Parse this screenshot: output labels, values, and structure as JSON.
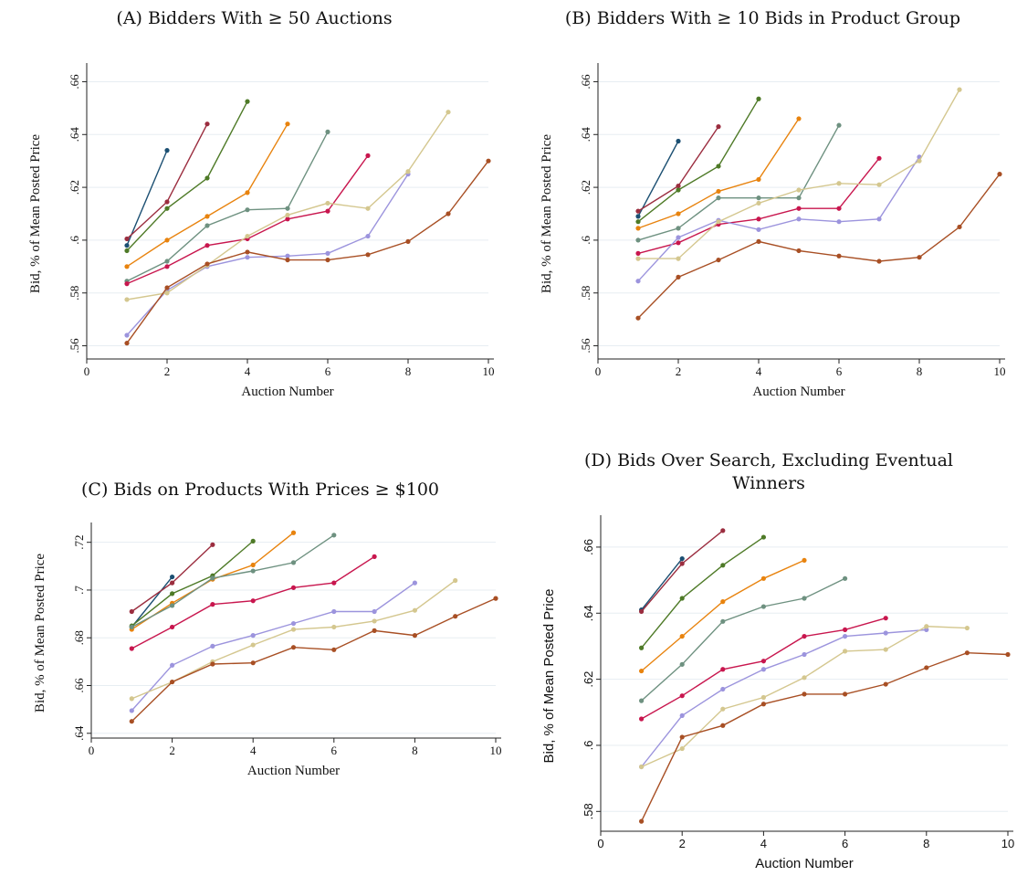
{
  "colors": {
    "navy": "#1b4f72",
    "maroon": "#9b2d3f",
    "green": "#4e7a27",
    "orange": "#e8830e",
    "teal": "#6e9180",
    "crimson": "#c8164e",
    "lavender": "#9c94dd",
    "tan": "#d4c78f",
    "brown": "#a84f24",
    "gridline": "#e7edf2",
    "axis": "#222222"
  },
  "chart_data": [
    {
      "type": "line",
      "title": "(A) Bidders With ≥ 50 Auctions",
      "xlabel": "Auction Number",
      "ylabel": "Bid, % of Mean Posted Price",
      "xlim": [
        0,
        10
      ],
      "ylim": [
        0.555,
        0.665
      ],
      "xticks": [
        "0",
        "2",
        "4",
        "6",
        "8",
        "10"
      ],
      "yticks": [
        ".56",
        ".58",
        ".6",
        ".62",
        ".64",
        ".66"
      ],
      "ytick_values": [
        0.56,
        0.58,
        0.6,
        0.62,
        0.64,
        0.66
      ],
      "grid": true,
      "legend": "none",
      "series": [
        {
          "color": "navy",
          "x": [
            1,
            2
          ],
          "y": [
            0.598,
            0.634
          ]
        },
        {
          "color": "maroon",
          "x": [
            1,
            2,
            3
          ],
          "y": [
            0.6005,
            0.6145,
            0.644
          ]
        },
        {
          "color": "green",
          "x": [
            1,
            2,
            3,
            4
          ],
          "y": [
            0.596,
            0.612,
            0.6235,
            0.6525
          ]
        },
        {
          "color": "orange",
          "x": [
            1,
            2,
            3,
            4,
            5
          ],
          "y": [
            0.59,
            0.6,
            0.609,
            0.618,
            0.644
          ]
        },
        {
          "color": "teal",
          "x": [
            1,
            2,
            3,
            4,
            5,
            6
          ],
          "y": [
            0.5845,
            0.592,
            0.6055,
            0.6115,
            0.612,
            0.641
          ]
        },
        {
          "color": "crimson",
          "x": [
            1,
            2,
            3,
            4,
            5,
            6,
            7
          ],
          "y": [
            0.5835,
            0.59,
            0.598,
            0.6005,
            0.608,
            0.611,
            0.632
          ]
        },
        {
          "color": "lavender",
          "x": [
            1,
            2,
            3,
            4,
            5,
            6,
            7,
            8
          ],
          "y": [
            0.564,
            0.581,
            0.59,
            0.5935,
            0.594,
            0.595,
            0.6015,
            0.625
          ]
        },
        {
          "color": "tan",
          "x": [
            1,
            2,
            3,
            4,
            5,
            6,
            7,
            8,
            9
          ],
          "y": [
            0.5775,
            0.58,
            0.5905,
            0.6015,
            0.6095,
            0.614,
            0.612,
            0.626,
            0.6485
          ]
        },
        {
          "color": "brown",
          "x": [
            1,
            2,
            3,
            4,
            5,
            6,
            7,
            8,
            9,
            10
          ],
          "y": [
            0.561,
            0.582,
            0.591,
            0.5955,
            0.5925,
            0.5925,
            0.5945,
            0.5995,
            0.61,
            0.63
          ]
        }
      ]
    },
    {
      "type": "line",
      "title": "(B) Bidders With ≥ 10 Bids in Product Group",
      "xlabel": "Auction Number",
      "ylabel": "Bid, % of Mean Posted Price",
      "xlim": [
        0,
        10
      ],
      "ylim": [
        0.555,
        0.665
      ],
      "xticks": [
        "0",
        "2",
        "4",
        "6",
        "8",
        "10"
      ],
      "yticks": [
        ".56",
        ".58",
        ".6",
        ".62",
        ".64",
        ".66"
      ],
      "ytick_values": [
        0.56,
        0.58,
        0.6,
        0.62,
        0.64,
        0.66
      ],
      "grid": true,
      "legend": "none",
      "series": [
        {
          "color": "navy",
          "x": [
            1,
            2
          ],
          "y": [
            0.609,
            0.6375
          ]
        },
        {
          "color": "maroon",
          "x": [
            1,
            2,
            3
          ],
          "y": [
            0.611,
            0.6205,
            0.643
          ]
        },
        {
          "color": "green",
          "x": [
            1,
            2,
            3,
            4
          ],
          "y": [
            0.607,
            0.619,
            0.628,
            0.6535
          ]
        },
        {
          "color": "orange",
          "x": [
            1,
            2,
            3,
            4,
            5
          ],
          "y": [
            0.6045,
            0.61,
            0.6185,
            0.623,
            0.646
          ]
        },
        {
          "color": "teal",
          "x": [
            1,
            2,
            3,
            4,
            5,
            6
          ],
          "y": [
            0.6,
            0.6045,
            0.616,
            0.616,
            0.616,
            0.6435
          ]
        },
        {
          "color": "crimson",
          "x": [
            1,
            2,
            3,
            4,
            5,
            6,
            7
          ],
          "y": [
            0.595,
            0.599,
            0.606,
            0.608,
            0.612,
            0.612,
            0.631
          ]
        },
        {
          "color": "lavender",
          "x": [
            1,
            2,
            3,
            4,
            5,
            6,
            7,
            8
          ],
          "y": [
            0.5845,
            0.601,
            0.6075,
            0.604,
            0.608,
            0.607,
            0.608,
            0.6315
          ]
        },
        {
          "color": "tan",
          "x": [
            1,
            2,
            3,
            4,
            5,
            6,
            7,
            8,
            9
          ],
          "y": [
            0.593,
            0.593,
            0.607,
            0.614,
            0.619,
            0.6215,
            0.621,
            0.63,
            0.657
          ]
        },
        {
          "color": "brown",
          "x": [
            1,
            2,
            3,
            4,
            5,
            6,
            7,
            8,
            9,
            10
          ],
          "y": [
            0.5705,
            0.586,
            0.5925,
            0.5995,
            0.596,
            0.594,
            0.592,
            0.5935,
            0.605,
            0.625
          ]
        }
      ]
    },
    {
      "type": "line",
      "title": "(C) Bids on Products With Prices ≥ $100",
      "xlabel": "Auction Number",
      "ylabel": "Bid, % of Mean Posted Price",
      "xlim": [
        0,
        10
      ],
      "ylim": [
        0.638,
        0.726
      ],
      "xticks": [
        "0",
        "2",
        "4",
        "6",
        "8",
        "10"
      ],
      "yticks": [
        ".64",
        ".66",
        ".68",
        ".7",
        ".72"
      ],
      "ytick_values": [
        0.64,
        0.66,
        0.68,
        0.7,
        0.72
      ],
      "grid": true,
      "legend": "none",
      "series": [
        {
          "color": "navy",
          "x": [
            1,
            2
          ],
          "y": [
            0.6845,
            0.7055
          ]
        },
        {
          "color": "maroon",
          "x": [
            1,
            2,
            3
          ],
          "y": [
            0.691,
            0.703,
            0.719
          ]
        },
        {
          "color": "green",
          "x": [
            1,
            2,
            3,
            4
          ],
          "y": [
            0.685,
            0.6985,
            0.706,
            0.7205
          ]
        },
        {
          "color": "orange",
          "x": [
            1,
            2,
            3,
            4,
            5
          ],
          "y": [
            0.6835,
            0.6945,
            0.7045,
            0.7105,
            0.724
          ]
        },
        {
          "color": "teal",
          "x": [
            1,
            2,
            3,
            4,
            5,
            6
          ],
          "y": [
            0.6845,
            0.6935,
            0.705,
            0.708,
            0.7115,
            0.723
          ]
        },
        {
          "color": "crimson",
          "x": [
            1,
            2,
            3,
            4,
            5,
            6,
            7
          ],
          "y": [
            0.6755,
            0.6845,
            0.694,
            0.6955,
            0.701,
            0.703,
            0.714
          ]
        },
        {
          "color": "lavender",
          "x": [
            1,
            2,
            3,
            4,
            5,
            6,
            7,
            8
          ],
          "y": [
            0.6495,
            0.6685,
            0.6765,
            0.681,
            0.686,
            0.691,
            0.691,
            0.703
          ]
        },
        {
          "color": "tan",
          "x": [
            1,
            2,
            3,
            4,
            5,
            6,
            7,
            8,
            9
          ],
          "y": [
            0.6545,
            0.6615,
            0.67,
            0.677,
            0.6835,
            0.6845,
            0.687,
            0.6915,
            0.704
          ]
        },
        {
          "color": "brown",
          "x": [
            1,
            2,
            3,
            4,
            5,
            6,
            7,
            8,
            9,
            10
          ],
          "y": [
            0.645,
            0.6615,
            0.669,
            0.6695,
            0.676,
            0.675,
            0.683,
            0.681,
            0.689,
            0.6965
          ]
        }
      ]
    },
    {
      "type": "line",
      "title": "(D) Bids Over Search, Excluding Eventual Winners",
      "xlabel": "Auction Number",
      "ylabel": "Bid, % of Mean Posted Price",
      "xlim": [
        0,
        10
      ],
      "ylim": [
        0.574,
        0.668
      ],
      "xticks": [
        "0",
        "2",
        "4",
        "6",
        "8",
        "10"
      ],
      "yticks": [
        ".58",
        ".6",
        ".62",
        ".64",
        ".66"
      ],
      "ytick_values": [
        0.58,
        0.6,
        0.62,
        0.64,
        0.66
      ],
      "grid": true,
      "legend": "none",
      "series": [
        {
          "color": "navy",
          "x": [
            1,
            2
          ],
          "y": [
            0.641,
            0.6565
          ]
        },
        {
          "color": "maroon",
          "x": [
            1,
            2,
            3
          ],
          "y": [
            0.6405,
            0.655,
            0.665
          ]
        },
        {
          "color": "green",
          "x": [
            1,
            2,
            3,
            4
          ],
          "y": [
            0.6295,
            0.6445,
            0.6545,
            0.663
          ]
        },
        {
          "color": "orange",
          "x": [
            1,
            2,
            3,
            4,
            5
          ],
          "y": [
            0.6225,
            0.633,
            0.6435,
            0.6505,
            0.656
          ]
        },
        {
          "color": "teal",
          "x": [
            1,
            2,
            3,
            4,
            5,
            6
          ],
          "y": [
            0.6135,
            0.6245,
            0.6375,
            0.642,
            0.6445,
            0.6505
          ]
        },
        {
          "color": "crimson",
          "x": [
            1,
            2,
            3,
            4,
            5,
            6,
            7
          ],
          "y": [
            0.608,
            0.615,
            0.623,
            0.6255,
            0.633,
            0.635,
            0.6385
          ]
        },
        {
          "color": "lavender",
          "x": [
            1,
            2,
            3,
            4,
            5,
            6,
            7,
            8
          ],
          "y": [
            0.5935,
            0.609,
            0.617,
            0.623,
            0.6275,
            0.633,
            0.634,
            0.635
          ]
        },
        {
          "color": "tan",
          "x": [
            1,
            2,
            3,
            4,
            5,
            6,
            7,
            8,
            9
          ],
          "y": [
            0.5935,
            0.599,
            0.611,
            0.6145,
            0.6205,
            0.6285,
            0.629,
            0.636,
            0.6355
          ]
        },
        {
          "color": "brown",
          "x": [
            1,
            2,
            3,
            4,
            5,
            6,
            7,
            8,
            9,
            10
          ],
          "y": [
            0.577,
            0.6025,
            0.606,
            0.6125,
            0.6155,
            0.6155,
            0.6185,
            0.6235,
            0.628,
            0.6275
          ]
        }
      ]
    }
  ]
}
